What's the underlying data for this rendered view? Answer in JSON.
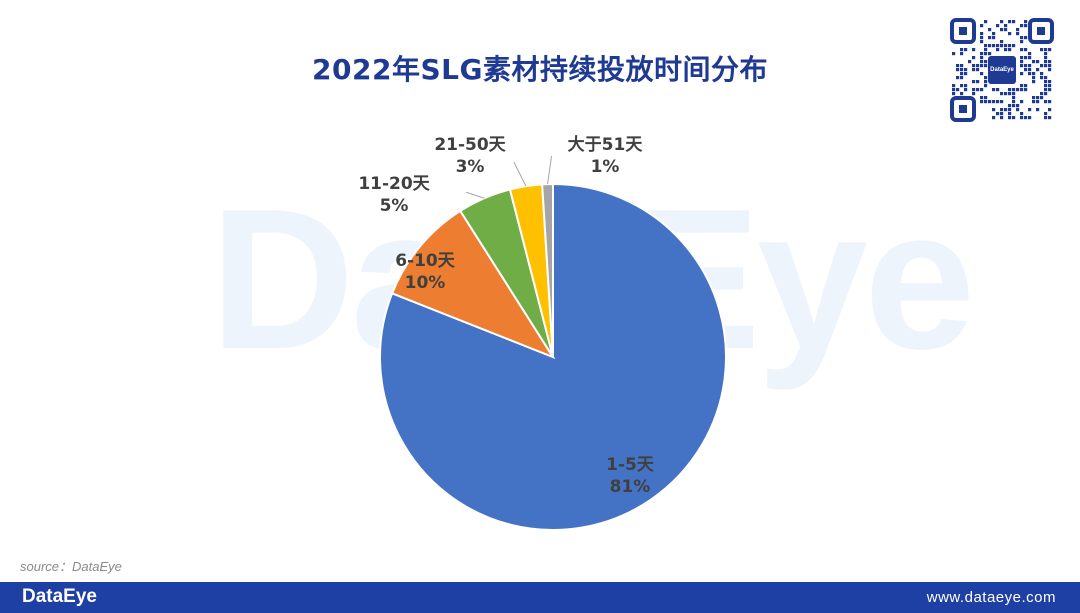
{
  "header": {
    "title": "2022年SLG素材持续投放时间分布"
  },
  "watermark": "DataEye",
  "qr": {
    "logo_text": "DataEye"
  },
  "source": "source：DataEye",
  "footer": {
    "brand": "DataEye",
    "url": "www.dataeye.com"
  },
  "chart_data": {
    "type": "pie",
    "title": "2022年SLG素材持续投放时间分布",
    "slices": [
      {
        "label": "1-5天",
        "value": 81,
        "value_label": "81%",
        "color": "#4472c4"
      },
      {
        "label": "6-10天",
        "value": 10,
        "value_label": "10%",
        "color": "#ed7d31"
      },
      {
        "label": "11-20天",
        "value": 5,
        "value_label": "5%",
        "color": "#70ad47"
      },
      {
        "label": "21-50天",
        "value": 3,
        "value_label": "3%",
        "color": "#ffc000"
      },
      {
        "label": "大于51天",
        "value": 1,
        "value_label": "1%",
        "color": "#a5a5a5"
      }
    ],
    "start_angle_deg": 0,
    "direction": "clockwise"
  }
}
